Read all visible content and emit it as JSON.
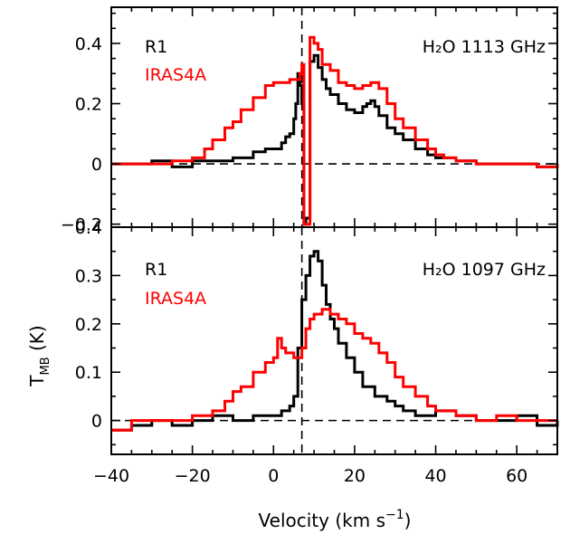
{
  "colors": {
    "black": "#000000",
    "red": "#ff0000"
  },
  "figure": {
    "xlabel_main": "Velocity (km s",
    "xlabel_exp": "−1",
    "xlabel_close": ")",
    "ylabel_main": "T",
    "ylabel_sub": "MB",
    "ylabel_tail": " (K)"
  },
  "chart_data": [
    {
      "type": "line",
      "panel": "top",
      "species_label": "H₂O 1113 GHz",
      "xlim": [
        -40,
        70
      ],
      "ylim": [
        -0.21,
        0.52
      ],
      "x_ticks": [
        -40,
        -20,
        0,
        20,
        40,
        60
      ],
      "y_ticks": [
        -0.2,
        0,
        0.2,
        0.4
      ],
      "y_tick_labels": [
        "−0.2",
        "0",
        "0.2",
        "0.4"
      ],
      "vline_x": 7,
      "hline_y": 0,
      "series": [
        {
          "name": "R1",
          "color": "#000000",
          "step": true,
          "x": [
            -40,
            -35,
            -30,
            -25,
            -20,
            -15,
            -10,
            -5,
            -2,
            0,
            2,
            3,
            4,
            5,
            5.5,
            6,
            6.5,
            7,
            7.5,
            8,
            9,
            10,
            11,
            12,
            13,
            14,
            16,
            18,
            20,
            22,
            23,
            24,
            25,
            26,
            28,
            30,
            32,
            35,
            38,
            40,
            45,
            50,
            55,
            60,
            65,
            70
          ],
          "y": [
            0.0,
            0.0,
            0.01,
            -0.01,
            0.01,
            0.01,
            0.02,
            0.04,
            0.05,
            0.05,
            0.07,
            0.09,
            0.1,
            0.15,
            0.2,
            0.3,
            0.26,
            0.2,
            -0.2,
            -0.18,
            0.34,
            0.36,
            0.32,
            0.28,
            0.25,
            0.23,
            0.2,
            0.18,
            0.17,
            0.19,
            0.2,
            0.21,
            0.19,
            0.16,
            0.12,
            0.1,
            0.08,
            0.05,
            0.03,
            0.02,
            0.01,
            0.0,
            0.0,
            0.0,
            -0.01,
            0.0
          ]
        },
        {
          "name": "IRAS4A",
          "color": "#ff0000",
          "step": true,
          "x": [
            -40,
            -35,
            -30,
            -25,
            -20,
            -17,
            -15,
            -12,
            -10,
            -8,
            -5,
            -2,
            0,
            2,
            4,
            5,
            6,
            6.5,
            7,
            7.5,
            8,
            9,
            10,
            11,
            12,
            14,
            16,
            18,
            20,
            22,
            24,
            26,
            28,
            30,
            32,
            35,
            38,
            40,
            42,
            45,
            50,
            55,
            60,
            65,
            70
          ],
          "y": [
            0.0,
            0.0,
            0.0,
            0.01,
            0.02,
            0.05,
            0.08,
            0.12,
            0.14,
            0.18,
            0.22,
            0.26,
            0.27,
            0.27,
            0.28,
            0.28,
            0.28,
            0.3,
            0.33,
            -0.2,
            -0.2,
            0.42,
            0.4,
            0.38,
            0.33,
            0.31,
            0.27,
            0.26,
            0.25,
            0.26,
            0.27,
            0.25,
            0.2,
            0.15,
            0.12,
            0.08,
            0.05,
            0.03,
            0.02,
            0.01,
            0.0,
            0.0,
            0.0,
            -0.01,
            0.0
          ]
        }
      ]
    },
    {
      "type": "line",
      "panel": "bottom",
      "species_label": "H₂O 1097 GHz",
      "xlim": [
        -40,
        70
      ],
      "ylim": [
        -0.07,
        0.4
      ],
      "x_ticks": [
        -40,
        -20,
        0,
        20,
        40,
        60
      ],
      "x_tick_labels": [
        "−40",
        "−20",
        "0",
        "20",
        "40",
        "60"
      ],
      "y_ticks": [
        0,
        0.1,
        0.2,
        0.3,
        0.4
      ],
      "y_tick_labels": [
        "0",
        "0.1",
        "0.2",
        "0.3",
        "0.4"
      ],
      "vline_x": 7,
      "hline_y": 0,
      "series": [
        {
          "name": "R1",
          "color": "#000000",
          "step": true,
          "x": [
            -40,
            -35,
            -30,
            -25,
            -20,
            -15,
            -10,
            -5,
            0,
            2,
            4,
            5,
            6,
            7,
            8,
            9,
            10,
            11,
            12,
            13,
            14,
            15,
            16,
            18,
            20,
            22,
            25,
            28,
            30,
            32,
            35,
            38,
            40,
            45,
            50,
            55,
            60,
            65,
            70
          ],
          "y": [
            -0.02,
            -0.01,
            0.0,
            -0.01,
            0.0,
            0.01,
            0.0,
            0.01,
            0.01,
            0.02,
            0.03,
            0.05,
            0.15,
            0.25,
            0.3,
            0.34,
            0.35,
            0.33,
            0.28,
            0.24,
            0.21,
            0.19,
            0.16,
            0.13,
            0.1,
            0.07,
            0.05,
            0.04,
            0.03,
            0.02,
            0.01,
            0.01,
            0.02,
            0.01,
            0.0,
            0.0,
            0.01,
            -0.01,
            0.0
          ]
        },
        {
          "name": "IRAS4A",
          "color": "#ff0000",
          "step": true,
          "x": [
            -40,
            -35,
            -30,
            -25,
            -20,
            -15,
            -12,
            -10,
            -8,
            -5,
            -2,
            0,
            1,
            2,
            3,
            4,
            5,
            6,
            7,
            8,
            9,
            10,
            12,
            14,
            16,
            18,
            20,
            22,
            24,
            26,
            28,
            30,
            32,
            35,
            38,
            40,
            45,
            50,
            55,
            60,
            65,
            70
          ],
          "y": [
            -0.02,
            0.0,
            0.0,
            0.0,
            0.01,
            0.02,
            0.04,
            0.06,
            0.07,
            0.1,
            0.12,
            0.13,
            0.17,
            0.15,
            0.14,
            0.14,
            0.13,
            0.13,
            0.15,
            0.19,
            0.21,
            0.22,
            0.23,
            0.22,
            0.21,
            0.2,
            0.18,
            0.17,
            0.16,
            0.14,
            0.12,
            0.09,
            0.07,
            0.05,
            0.03,
            0.02,
            0.01,
            0.0,
            0.01,
            0.0,
            0.0,
            0.0
          ]
        }
      ]
    }
  ]
}
